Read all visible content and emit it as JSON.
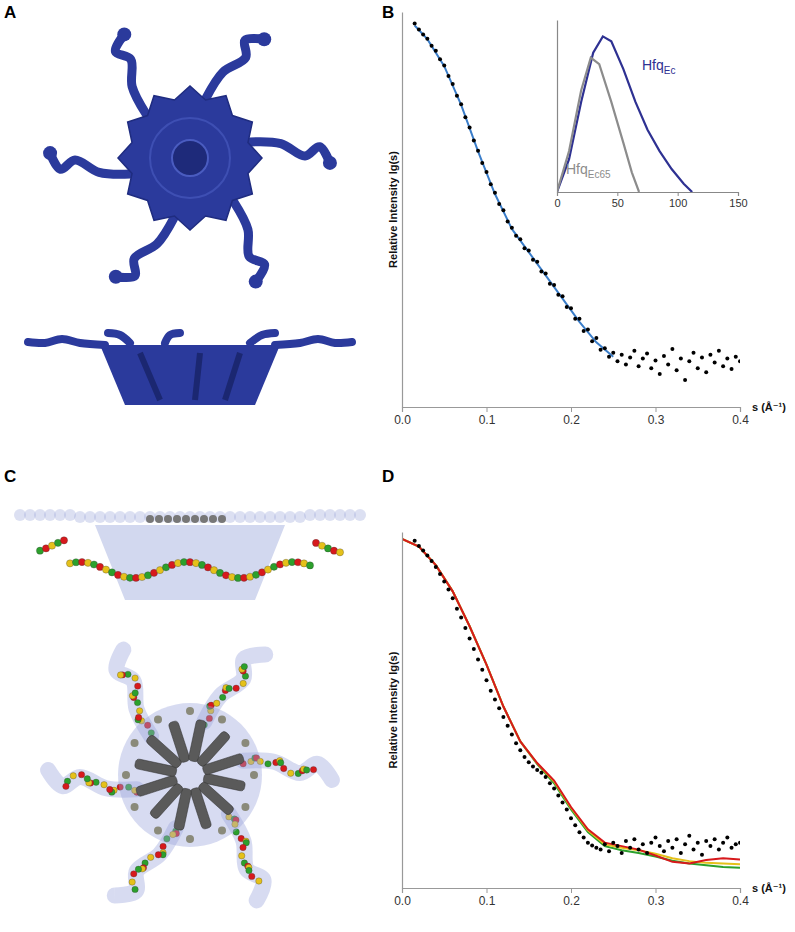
{
  "diagrams": [
    {
      "label": "A"
    },
    {
      "label": "C"
    }
  ],
  "chart_data": [
    {
      "type": "scatter",
      "title": "B",
      "x_label": "s (Å⁻¹)",
      "y_label": "Relative Intensity lg(s)",
      "xlim": [
        0,
        0.4
      ],
      "ylim": [
        0,
        1.02
      ],
      "xticks": [
        {
          "value": 0,
          "label": "0.0"
        },
        0.1,
        0.2,
        0.3,
        0.4
      ],
      "tick_labels": "x",
      "series": [
        {
          "type": "scatter",
          "marker": "circle",
          "color": "#000000",
          "x": [
            0.015,
            0.02,
            0.025,
            0.03,
            0.035,
            0.04,
            0.045,
            0.05,
            0.055,
            0.06,
            0.065,
            0.07,
            0.075,
            0.08,
            0.085,
            0.09,
            0.095,
            0.1,
            0.105,
            0.11,
            0.115,
            0.12,
            0.125,
            0.13,
            0.135,
            0.14,
            0.145,
            0.15,
            0.155,
            0.16,
            0.165,
            0.17,
            0.175,
            0.18,
            0.185,
            0.19,
            0.195,
            0.2,
            0.205,
            0.21,
            0.215,
            0.22,
            0.225,
            0.23,
            0.235,
            0.24,
            0.245,
            0.25,
            0.255,
            0.26,
            0.265,
            0.27,
            0.275,
            0.28,
            0.285,
            0.29,
            0.295,
            0.3,
            0.305,
            0.31,
            0.315,
            0.32,
            0.325,
            0.33,
            0.335,
            0.34,
            0.345,
            0.35,
            0.355,
            0.36,
            0.365,
            0.37,
            0.375,
            0.38,
            0.385,
            0.39,
            0.395,
            0.4
          ],
          "values": [
            0.99,
            0.975,
            0.962,
            0.951,
            0.933,
            0.92,
            0.898,
            0.882,
            0.855,
            0.834,
            0.804,
            0.782,
            0.748,
            0.722,
            0.688,
            0.662,
            0.63,
            0.607,
            0.575,
            0.553,
            0.524,
            0.508,
            0.479,
            0.463,
            0.442,
            0.433,
            0.41,
            0.404,
            0.38,
            0.375,
            0.35,
            0.345,
            0.318,
            0.315,
            0.29,
            0.286,
            0.258,
            0.255,
            0.228,
            0.228,
            0.196,
            0.2,
            0.17,
            0.178,
            0.148,
            0.152,
            0.13,
            0.14,
            0.118,
            0.135,
            0.11,
            0.128,
            0.145,
            0.105,
            0.125,
            0.138,
            0.1,
            0.12,
            0.085,
            0.132,
            0.11,
            0.15,
            0.095,
            0.125,
            0.07,
            0.118,
            0.14,
            0.1,
            0.128,
            0.09,
            0.135,
            0.115,
            0.145,
            0.105,
            0.125,
            0.098,
            0.13,
            0.118
          ]
        },
        {
          "type": "line",
          "color": "#3a7dc9",
          "x": [
            0.015,
            0.03,
            0.05,
            0.07,
            0.09,
            0.11,
            0.13,
            0.15,
            0.17,
            0.19,
            0.21,
            0.23,
            0.25
          ],
          "values": [
            0.985,
            0.95,
            0.88,
            0.78,
            0.66,
            0.55,
            0.46,
            0.4,
            0.34,
            0.28,
            0.22,
            0.167,
            0.13
          ]
        }
      ]
    },
    {
      "type": "line",
      "xlim": [
        0,
        150
      ],
      "ylim": [
        0,
        1.05
      ],
      "xticks": [
        0,
        50,
        100,
        150
      ],
      "tick_labels": "x",
      "series": [
        {
          "name": "HfqEc",
          "color": "#2e3192",
          "x": [
            0,
            10,
            20,
            30,
            38,
            45,
            55,
            65,
            75,
            85,
            95,
            105,
            112
          ],
          "values": [
            0,
            0.2,
            0.55,
            0.85,
            0.95,
            0.92,
            0.75,
            0.55,
            0.38,
            0.25,
            0.14,
            0.05,
            0
          ]
        },
        {
          "name": "HfqEc65",
          "color": "#8c8c8c",
          "x": [
            0,
            10,
            20,
            28,
            35,
            45,
            55,
            62,
            68
          ],
          "values": [
            0,
            0.25,
            0.62,
            0.82,
            0.78,
            0.55,
            0.3,
            0.12,
            0
          ]
        }
      ]
    },
    {
      "type": "scatter",
      "title": "D",
      "x_label": "s (Å⁻¹)",
      "y_label": "Relative Intensity lg(s)",
      "xlim": [
        0,
        0.4
      ],
      "ylim": [
        0,
        1.02
      ],
      "xticks": [
        {
          "value": 0,
          "label": "0.0"
        },
        0.1,
        0.2,
        0.3,
        0.4
      ],
      "tick_labels": "x",
      "series": [
        {
          "type": "scatter",
          "marker": "circle",
          "color": "#000000",
          "x": [
            0.015,
            0.02,
            0.025,
            0.03,
            0.035,
            0.04,
            0.045,
            0.05,
            0.055,
            0.06,
            0.065,
            0.07,
            0.075,
            0.08,
            0.085,
            0.09,
            0.095,
            0.1,
            0.105,
            0.11,
            0.115,
            0.12,
            0.125,
            0.13,
            0.135,
            0.14,
            0.145,
            0.15,
            0.155,
            0.16,
            0.165,
            0.17,
            0.175,
            0.18,
            0.185,
            0.19,
            0.195,
            0.2,
            0.205,
            0.21,
            0.215,
            0.22,
            0.225,
            0.23,
            0.235,
            0.24,
            0.245,
            0.25,
            0.255,
            0.26,
            0.265,
            0.27,
            0.275,
            0.28,
            0.285,
            0.29,
            0.295,
            0.3,
            0.305,
            0.31,
            0.315,
            0.32,
            0.325,
            0.33,
            0.335,
            0.34,
            0.345,
            0.35,
            0.355,
            0.36,
            0.365,
            0.37,
            0.375,
            0.38,
            0.385,
            0.39,
            0.395,
            0.4
          ],
          "values": [
            0.995,
            0.98,
            0.967,
            0.953,
            0.937,
            0.92,
            0.9,
            0.878,
            0.855,
            0.83,
            0.8,
            0.775,
            0.745,
            0.715,
            0.685,
            0.655,
            0.625,
            0.595,
            0.565,
            0.54,
            0.515,
            0.49,
            0.465,
            0.44,
            0.415,
            0.395,
            0.375,
            0.36,
            0.348,
            0.338,
            0.33,
            0.318,
            0.3,
            0.285,
            0.265,
            0.245,
            0.225,
            0.2,
            0.18,
            0.16,
            0.145,
            0.13,
            0.122,
            0.115,
            0.11,
            0.125,
            0.105,
            0.13,
            0.12,
            0.1,
            0.135,
            0.115,
            0.14,
            0.11,
            0.125,
            0.1,
            0.13,
            0.145,
            0.12,
            0.105,
            0.135,
            0.115,
            0.14,
            0.1,
            0.125,
            0.15,
            0.11,
            0.13,
            0.095,
            0.135,
            0.12,
            0.14,
            0.11,
            0.13,
            0.145,
            0.115,
            0.125,
            0.13
          ]
        },
        {
          "type": "line",
          "color": "#2ca02c",
          "x": [
            0,
            0.02,
            0.04,
            0.06,
            0.08,
            0.1,
            0.12,
            0.14,
            0.16,
            0.18,
            0.2,
            0.22,
            0.24,
            0.26,
            0.28,
            0.3,
            0.32,
            0.34,
            0.36,
            0.38,
            0.4
          ],
          "values": [
            1.0,
            0.978,
            0.925,
            0.85,
            0.75,
            0.64,
            0.52,
            0.42,
            0.355,
            0.3,
            0.225,
            0.16,
            0.12,
            0.108,
            0.1,
            0.09,
            0.078,
            0.07,
            0.065,
            0.06,
            0.058
          ]
        },
        {
          "type": "line",
          "color": "#e5c11a",
          "x": [
            0,
            0.02,
            0.04,
            0.06,
            0.08,
            0.1,
            0.12,
            0.14,
            0.16,
            0.18,
            0.2,
            0.22,
            0.24,
            0.26,
            0.28,
            0.3,
            0.32,
            0.34,
            0.36,
            0.38,
            0.4
          ],
          "values": [
            1.0,
            0.978,
            0.925,
            0.85,
            0.75,
            0.64,
            0.52,
            0.42,
            0.357,
            0.305,
            0.23,
            0.165,
            0.125,
            0.115,
            0.108,
            0.098,
            0.085,
            0.077,
            0.072,
            0.07,
            0.068
          ]
        },
        {
          "type": "line",
          "color": "#d7191c",
          "x": [
            0,
            0.02,
            0.04,
            0.06,
            0.08,
            0.1,
            0.12,
            0.14,
            0.16,
            0.18,
            0.2,
            0.22,
            0.24,
            0.26,
            0.28,
            0.3,
            0.32,
            0.34,
            0.36,
            0.38,
            0.4
          ],
          "values": [
            1.0,
            0.978,
            0.925,
            0.85,
            0.75,
            0.64,
            0.52,
            0.42,
            0.358,
            0.308,
            0.232,
            0.168,
            0.13,
            0.12,
            0.11,
            0.093,
            0.075,
            0.07,
            0.08,
            0.085,
            0.082
          ]
        }
      ]
    }
  ]
}
